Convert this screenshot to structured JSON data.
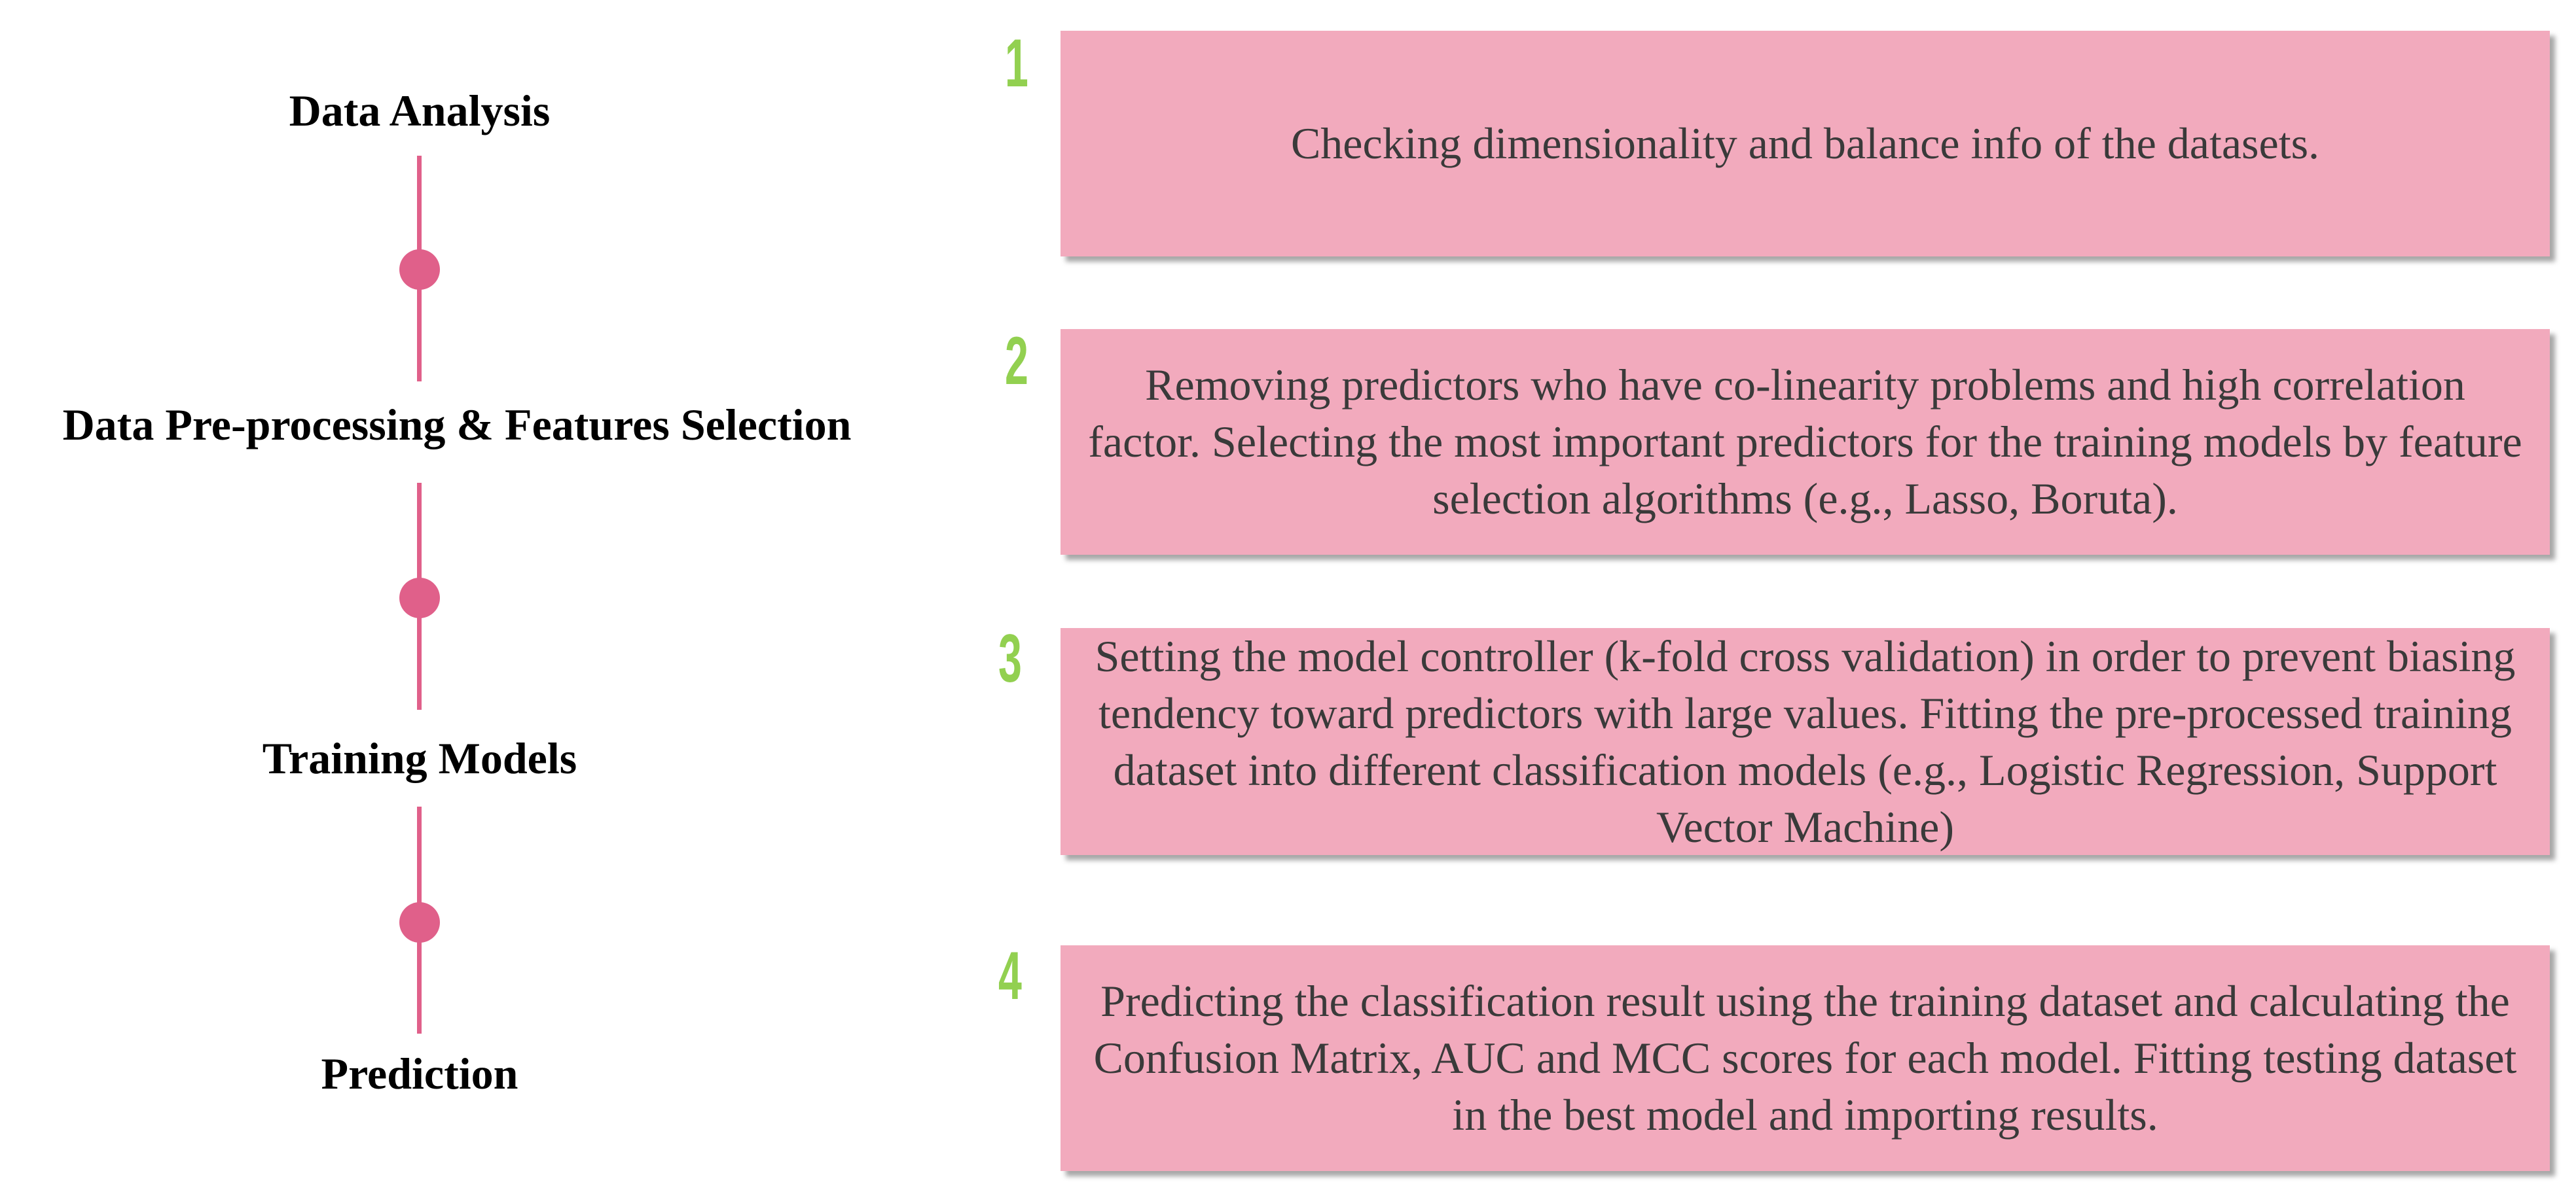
{
  "colors": {
    "timeline": "#e0608a",
    "step_number": "#92d050",
    "box_fill": "#f2aabd",
    "box_text": "#3a3a3a",
    "stage_text": "#000000"
  },
  "stages": [
    {
      "label": "Data Analysis"
    },
    {
      "label": "Data Pre-processing & Features Selection"
    },
    {
      "label": "Training Models"
    },
    {
      "label": "Prediction"
    }
  ],
  "steps": [
    {
      "number": "1",
      "text": "Checking dimensionality and balance info of the datasets."
    },
    {
      "number": "2",
      "text": "Removing predictors who have co-linearity problems and high correlation factor. Selecting the most important predictors for the training models by feature selection algorithms (e.g., Lasso, Boruta)."
    },
    {
      "number": "3",
      "text": "Setting the model controller (k-fold cross validation) in order to prevent biasing tendency toward predictors with large values. Fitting the pre-processed training dataset into different classification models (e.g., Logistic Regression, Support Vector Machine)"
    },
    {
      "number": "4",
      "text": "Predicting the classification result using the training dataset and calculating the Confusion Matrix, AUC and MCC scores for each model. Fitting testing dataset in the best model and importing results."
    }
  ]
}
